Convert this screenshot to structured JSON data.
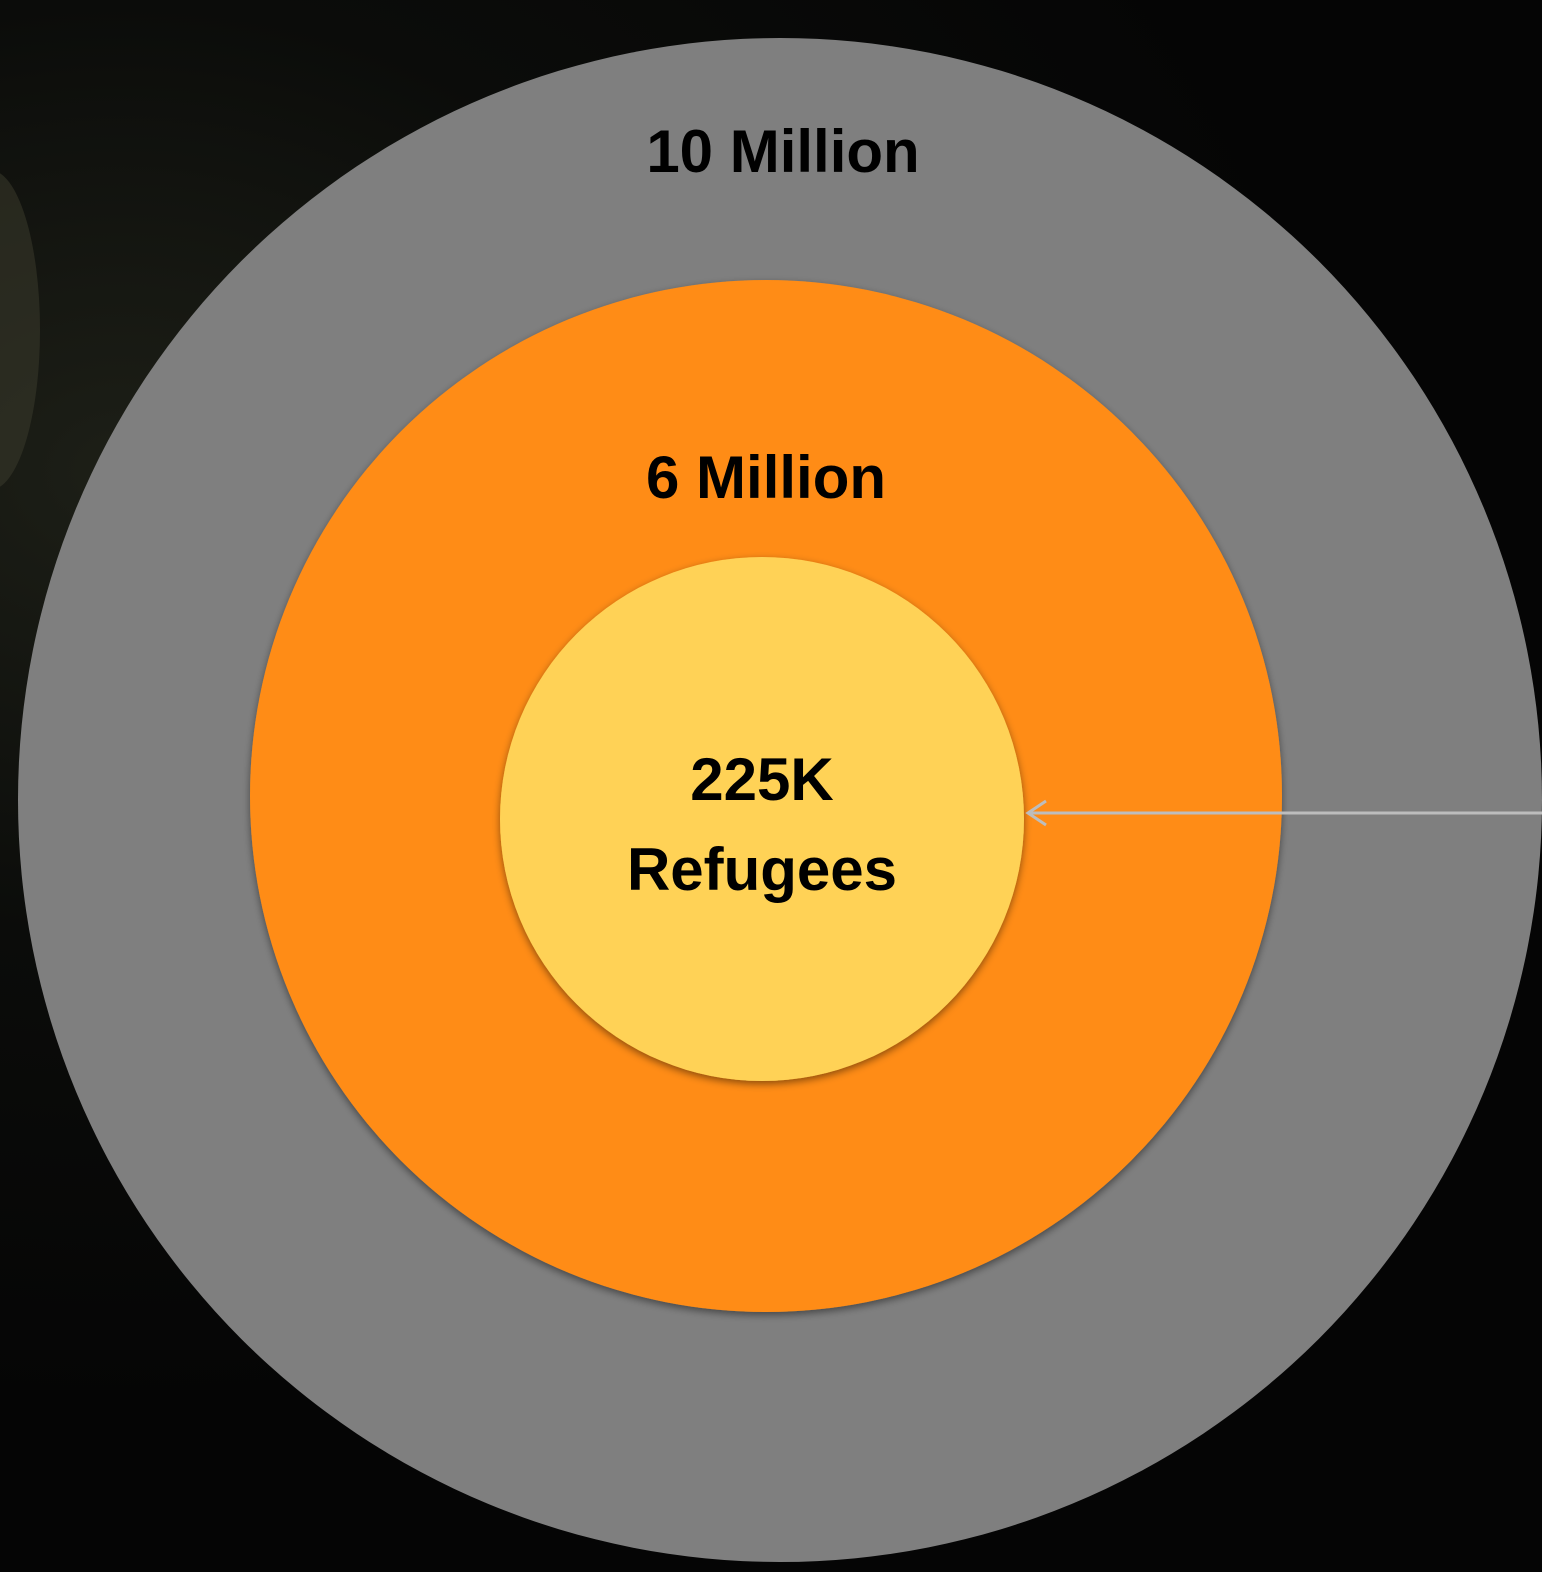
{
  "diagram": {
    "outer_ring": {
      "label": "10 Million",
      "color": "#7f7f7f"
    },
    "middle_ring": {
      "label": "6 Million",
      "color": "#ff8c14"
    },
    "inner_circle": {
      "label_line1": "225K",
      "label_line2": "Refugees",
      "color": "#ffd257"
    },
    "arrow": {
      "color": "#bdbdbd",
      "points_to": "inner_circle"
    },
    "background_color": "#050505"
  }
}
